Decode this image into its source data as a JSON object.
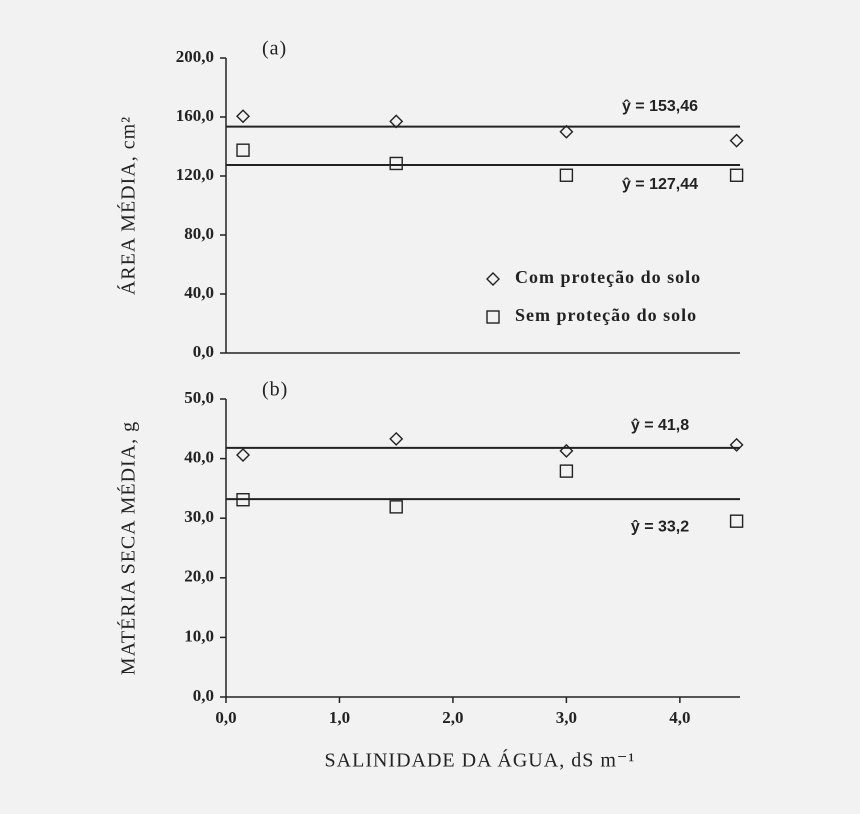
{
  "chart_data": [
    {
      "type": "scatter",
      "label": "(a)",
      "ylabel": "ÁREA MÉDIA, cm²",
      "x": [
        0.15,
        1.5,
        3.0,
        4.5
      ],
      "xlim": [
        0,
        4.53
      ],
      "ylim": [
        0,
        200
      ],
      "yticks": [
        {
          "value": 0,
          "label": "0,0"
        },
        {
          "value": 40,
          "label": "40,0"
        },
        {
          "value": 80,
          "label": "80,0"
        },
        {
          "value": 120,
          "label": "120,0"
        },
        {
          "value": 160,
          "label": "160,0"
        },
        {
          "value": 200,
          "label": "200,0"
        }
      ],
      "series": [
        {
          "name": "Com proteção do solo",
          "marker": "diamond",
          "color": "#222222",
          "values": [
            160.5,
            157,
            150,
            144
          ]
        },
        {
          "name": "Sem proteção do solo",
          "marker": "square",
          "color": "#222222",
          "values": [
            137.5,
            128.5,
            120.5,
            120.5
          ]
        }
      ],
      "lines": [
        {
          "value": 153.46,
          "label": "ŷ = 153,46"
        },
        {
          "value": 127.44,
          "label": "ŷ = 127,44"
        }
      ],
      "legend": "right"
    },
    {
      "type": "scatter",
      "label": "(b)",
      "ylabel": "MATÉRIA SECA MÉDIA, g",
      "xlabel": "SALINIDADE DA ÁGUA, dS m⁻¹",
      "x": [
        0.15,
        1.5,
        3.0,
        4.5
      ],
      "xlim": [
        0,
        4.53
      ],
      "xticks": [
        {
          "value": 0,
          "label": "0,0"
        },
        {
          "value": 1,
          "label": "1,0"
        },
        {
          "value": 2,
          "label": "2,0"
        },
        {
          "value": 3,
          "label": "3,0"
        },
        {
          "value": 4,
          "label": "4,0"
        }
      ],
      "ylim": [
        0,
        50
      ],
      "yticks": [
        {
          "value": 0,
          "label": "0,0"
        },
        {
          "value": 10,
          "label": "10,0"
        },
        {
          "value": 20,
          "label": "20,0"
        },
        {
          "value": 30,
          "label": "30,0"
        },
        {
          "value": 40,
          "label": "40,0"
        },
        {
          "value": 50,
          "label": "50,0"
        }
      ],
      "series": [
        {
          "marker": "diamond",
          "color": "#222222",
          "values": [
            40.6,
            43.3,
            41.3,
            42.3
          ]
        },
        {
          "marker": "square",
          "color": "#222222",
          "values": [
            33.1,
            31.9,
            37.9,
            29.5
          ]
        }
      ],
      "lines": [
        {
          "value": 41.8,
          "label": "ŷ = 41,8"
        },
        {
          "value": 33.2,
          "label": "ŷ = 33,2"
        }
      ]
    }
  ]
}
